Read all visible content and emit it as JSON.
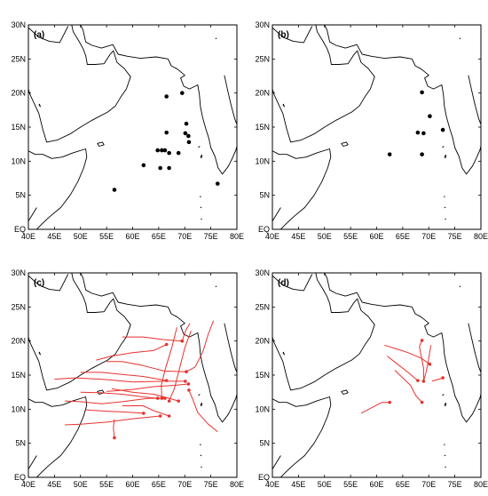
{
  "figure": {
    "panels": [
      {
        "id": "a",
        "label": "(a)",
        "kind": "genesis_points"
      },
      {
        "id": "b",
        "label": "(b)",
        "kind": "genesis_points"
      },
      {
        "id": "c",
        "label": "(c)",
        "kind": "tracks"
      },
      {
        "id": "d",
        "label": "(d)",
        "kind": "tracks"
      }
    ],
    "lon_ticks": [
      "40E",
      "45E",
      "50E",
      "55E",
      "60E",
      "65E",
      "70E",
      "75E",
      "80E"
    ],
    "lat_ticks": [
      "30N",
      "25N",
      "20N",
      "15N",
      "10N",
      "5N",
      "EQ"
    ],
    "extent": {
      "lon": [
        40,
        80
      ],
      "lat": [
        0,
        30
      ]
    },
    "colors": {
      "points": "#000000",
      "tracks": "#e8322f",
      "coast": "#000000"
    }
  },
  "map_data": {
    "a_points": [
      [
        66.5,
        19.5
      ],
      [
        69.5,
        20.0
      ],
      [
        66.5,
        14.2
      ],
      [
        70.3,
        15.5
      ],
      [
        70.1,
        14.1
      ],
      [
        70.7,
        13.7
      ],
      [
        70.8,
        12.8
      ],
      [
        64.8,
        11.6
      ],
      [
        65.6,
        11.6
      ],
      [
        66.2,
        11.6
      ],
      [
        67.0,
        11.2
      ],
      [
        68.8,
        11.2
      ],
      [
        62.1,
        9.4
      ],
      [
        65.3,
        9.0
      ],
      [
        67.0,
        9.0
      ],
      [
        56.5,
        5.8
      ],
      [
        76.3,
        6.7
      ]
    ],
    "b_points": [
      [
        68.7,
        20.1
      ],
      [
        70.2,
        16.6
      ],
      [
        67.9,
        14.2
      ],
      [
        69.0,
        14.1
      ],
      [
        72.7,
        14.6
      ],
      [
        62.5,
        11.0
      ],
      [
        68.7,
        11.0
      ]
    ],
    "c_tracks": [
      [
        [
          66.5,
          19.5
        ],
        [
          64,
          18.6
        ],
        [
          60,
          18.3
        ],
        [
          56,
          17.8
        ],
        [
          53,
          17.2
        ]
      ],
      [
        [
          69.5,
          20.0
        ],
        [
          66,
          20.2
        ],
        [
          62,
          20.6
        ],
        [
          58,
          20.6
        ]
      ],
      [
        [
          69.5,
          20.0
        ],
        [
          70.2,
          21.6
        ],
        [
          71.0,
          22.6
        ]
      ],
      [
        [
          66.5,
          14.2
        ],
        [
          62,
          14.8
        ],
        [
          58,
          15.1
        ],
        [
          54,
          15.4
        ],
        [
          50,
          15.4
        ]
      ],
      [
        [
          70.3,
          15.5
        ],
        [
          66,
          15.6
        ],
        [
          62,
          16.4
        ],
        [
          58,
          17.0
        ],
        [
          55,
          17.0
        ]
      ],
      [
        [
          70.3,
          15.5
        ],
        [
          72,
          16.2
        ],
        [
          73.5,
          18.5
        ],
        [
          74.5,
          21.0
        ],
        [
          75.5,
          23.0
        ]
      ],
      [
        [
          70.1,
          14.1
        ],
        [
          66,
          14.1
        ],
        [
          60,
          14.0
        ],
        [
          54,
          14.4
        ],
        [
          49,
          14.6
        ],
        [
          45,
          14.4
        ]
      ],
      [
        [
          70.7,
          13.7
        ],
        [
          68,
          13.5
        ],
        [
          64,
          13.3
        ],
        [
          60,
          12.9
        ],
        [
          55,
          12.6
        ]
      ],
      [
        [
          70.8,
          12.8
        ],
        [
          71.5,
          11.5
        ],
        [
          72.5,
          9.5
        ],
        [
          74.5,
          7.8
        ],
        [
          76.3,
          6.7
        ]
      ],
      [
        [
          64.8,
          11.6
        ],
        [
          62,
          11.8
        ],
        [
          58,
          12.2
        ],
        [
          54,
          12.4
        ],
        [
          50,
          12.5
        ]
      ],
      [
        [
          65.6,
          11.6
        ],
        [
          65.5,
          13.5
        ],
        [
          66.3,
          16.0
        ],
        [
          67.5,
          19.0
        ],
        [
          68.5,
          22.0
        ]
      ],
      [
        [
          66.2,
          11.6
        ],
        [
          63,
          11.6
        ],
        [
          58,
          11.1
        ],
        [
          54,
          10.8
        ],
        [
          50,
          11.1
        ],
        [
          47,
          11.2
        ]
      ],
      [
        [
          67.0,
          11.2
        ],
        [
          68,
          13.0
        ],
        [
          69.0,
          16.0
        ],
        [
          70.0,
          19.0
        ],
        [
          71.2,
          21.5
        ]
      ],
      [
        [
          68.8,
          11.2
        ],
        [
          67,
          11.6
        ],
        [
          64,
          12.2
        ],
        [
          60,
          12.5
        ],
        [
          56,
          13.0
        ]
      ],
      [
        [
          62.1,
          9.4
        ],
        [
          58,
          9.6
        ],
        [
          55,
          9.7
        ],
        [
          51,
          9.9
        ]
      ],
      [
        [
          65.3,
          9.0
        ],
        [
          60,
          8.6
        ],
        [
          55,
          8.1
        ],
        [
          50,
          7.8
        ],
        [
          47,
          7.7
        ]
      ],
      [
        [
          67.0,
          9.0
        ],
        [
          64,
          9.8
        ],
        [
          62,
          10.5
        ],
        [
          58,
          10.5
        ]
      ],
      [
        [
          56.5,
          5.8
        ],
        [
          56.3,
          7.3
        ],
        [
          56.5,
          8.5
        ]
      ]
    ],
    "d_tracks": [
      [
        [
          68.7,
          20.1
        ],
        [
          68.2,
          19.2
        ],
        [
          68.5,
          18.0
        ],
        [
          69.0,
          16.0
        ],
        [
          69.0,
          14.1
        ]
      ],
      [
        [
          70.2,
          16.6
        ],
        [
          68.5,
          17.5
        ],
        [
          66,
          18.3
        ],
        [
          64,
          18.8
        ],
        [
          61.5,
          19.4
        ]
      ],
      [
        [
          67.9,
          14.2
        ],
        [
          66,
          15.4
        ],
        [
          64,
          16.6
        ],
        [
          62,
          17.8
        ]
      ],
      [
        [
          69.0,
          14.1
        ],
        [
          69.5,
          15.5
        ],
        [
          70.0,
          17.5
        ],
        [
          70.4,
          19.4
        ]
      ],
      [
        [
          72.7,
          14.6
        ],
        [
          71.5,
          14.3
        ],
        [
          70.6,
          14.1
        ]
      ],
      [
        [
          62.5,
          11.0
        ],
        [
          61,
          11.0
        ],
        [
          59,
          10.2
        ],
        [
          57,
          9.4
        ]
      ],
      [
        [
          68.7,
          11.0
        ],
        [
          67.5,
          12.0
        ],
        [
          66.5,
          13.5
        ],
        [
          65.0,
          14.6
        ],
        [
          63.5,
          15.7
        ]
      ]
    ],
    "coastline": [
      [
        [
          40,
          29.6
        ],
        [
          42,
          28.2
        ],
        [
          44,
          27.6
        ],
        [
          46,
          27.4
        ],
        [
          47.6,
          29.8
        ]
      ],
      [
        [
          48.3,
          30
        ],
        [
          48.6,
          29.0
        ],
        [
          49.7,
          27.6
        ],
        [
          50.5,
          26.5
        ],
        [
          51.0,
          25.5
        ],
        [
          51.3,
          24.2
        ],
        [
          52.8,
          24.2
        ],
        [
          54.5,
          24.3
        ],
        [
          55.6,
          25.6
        ],
        [
          56.3,
          26.2
        ],
        [
          57.0,
          24.5
        ],
        [
          58.4,
          23.6
        ],
        [
          59.6,
          22.4
        ],
        [
          58.8,
          20.6
        ],
        [
          57.7,
          19.4
        ],
        [
          56.7,
          18.1
        ],
        [
          55.2,
          17.2
        ],
        [
          52.2,
          16.0
        ],
        [
          50.0,
          15.0
        ],
        [
          48.0,
          14.0
        ],
        [
          45.5,
          13.1
        ],
        [
          43.5,
          12.8
        ],
        [
          42.8,
          14.6
        ],
        [
          42.0,
          17.0
        ],
        [
          40.3,
          19.8
        ],
        [
          40,
          20.6
        ]
      ],
      [
        [
          48.0,
          30
        ],
        [
          50.0,
          30
        ],
        [
          50.5,
          29.2
        ],
        [
          51.0,
          27.5
        ],
        [
          52.2,
          27.0
        ],
        [
          54.0,
          26.6
        ],
        [
          56.2,
          27.1
        ],
        [
          57.2,
          25.7
        ],
        [
          59.0,
          25.4
        ],
        [
          61.5,
          25.1
        ],
        [
          64.5,
          25.3
        ],
        [
          66.8,
          25.0
        ],
        [
          67.4,
          24.0
        ],
        [
          68.6,
          23.5
        ],
        [
          70.0,
          22.6
        ],
        [
          69.2,
          22.2
        ],
        [
          69.8,
          21.0
        ],
        [
          70.9,
          20.6
        ],
        [
          72.5,
          21.2
        ],
        [
          72.8,
          19.8
        ],
        [
          73.0,
          18.0
        ],
        [
          73.4,
          16.5
        ],
        [
          74.0,
          14.8
        ],
        [
          74.6,
          13.4
        ],
        [
          75.0,
          12.0
        ],
        [
          75.8,
          10.7
        ],
        [
          76.4,
          9.0
        ],
        [
          77.2,
          8.1
        ],
        [
          77.8,
          8.7
        ],
        [
          78.4,
          9.3
        ],
        [
          79.1,
          10.4
        ],
        [
          79.8,
          11.6
        ],
        [
          80,
          12.2
        ]
      ],
      [
        [
          80,
          15.4
        ],
        [
          79.6,
          16.2
        ],
        [
          78.9,
          18.2
        ],
        [
          78.2,
          20.5
        ],
        [
          77.6,
          22.6
        ]
      ],
      [
        [
          40,
          11.5
        ],
        [
          41.3,
          11.0
        ],
        [
          42.8,
          11.0
        ],
        [
          44.5,
          10.4
        ],
        [
          46.5,
          10.6
        ],
        [
          48.5,
          11.2
        ],
        [
          51.0,
          11.8
        ],
        [
          51.2,
          10.6
        ],
        [
          50.6,
          9.0
        ],
        [
          49.5,
          7.0
        ],
        [
          48.0,
          5.0
        ],
        [
          46.2,
          3.2
        ],
        [
          44.0,
          1.8
        ],
        [
          42.6,
          0.8
        ],
        [
          41.6,
          0
        ]
      ],
      [
        [
          40,
          1.2
        ],
        [
          40.8,
          2.2
        ],
        [
          41.6,
          3.2
        ]
      ]
    ],
    "islands": [
      [
        [
          53.2,
          12.6
        ],
        [
          54.2,
          12.8
        ],
        [
          54.5,
          12.4
        ],
        [
          53.6,
          12.2
        ],
        [
          53.2,
          12.6
        ]
      ],
      [
        [
          73.0,
          10.6
        ],
        [
          73.3,
          10.9
        ],
        [
          73.2,
          10.5
        ],
        [
          73.0,
          10.6
        ]
      ],
      [
        [
          72.6,
          12.0
        ],
        [
          72.9,
          12.2
        ]
      ],
      [
        [
          42.0,
          18.3
        ],
        [
          42.3,
          18.0
        ],
        [
          42.1,
          18.4
        ]
      ]
    ],
    "dots": [
      [
        74.5,
        30
      ],
      [
        76,
        28
      ],
      [
        73.0,
        4.8
      ],
      [
        73.1,
        3.2
      ],
      [
        73.2,
        1.5
      ]
    ]
  }
}
